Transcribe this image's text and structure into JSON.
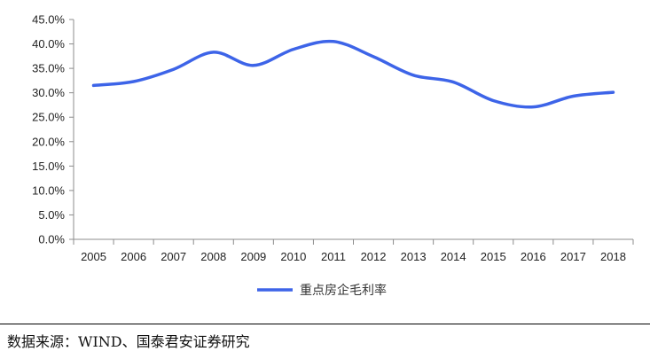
{
  "chart_data": {
    "type": "line",
    "title": "",
    "xlabel": "",
    "ylabel": "",
    "categories": [
      "2005",
      "2006",
      "2007",
      "2008",
      "2009",
      "2010",
      "2011",
      "2012",
      "2013",
      "2014",
      "2015",
      "2016",
      "2017",
      "2018"
    ],
    "series": [
      {
        "name": "重点房企毛利率",
        "color": "#3D64E8",
        "values": [
          31.5,
          32.3,
          34.8,
          38.3,
          35.6,
          38.9,
          40.5,
          37.4,
          33.6,
          32.2,
          28.4,
          27.1,
          29.3,
          30.1
        ]
      }
    ],
    "ylim": [
      0,
      45
    ],
    "ytick_step": 5,
    "ytick_labels": [
      "0.0%",
      "5.0%",
      "10.0%",
      "15.0%",
      "20.0%",
      "25.0%",
      "30.0%",
      "35.0%",
      "40.0%",
      "45.0%"
    ],
    "grid": false,
    "legend_position": "bottom"
  },
  "source_text": "数据来源：WIND、国泰君安证券研究"
}
